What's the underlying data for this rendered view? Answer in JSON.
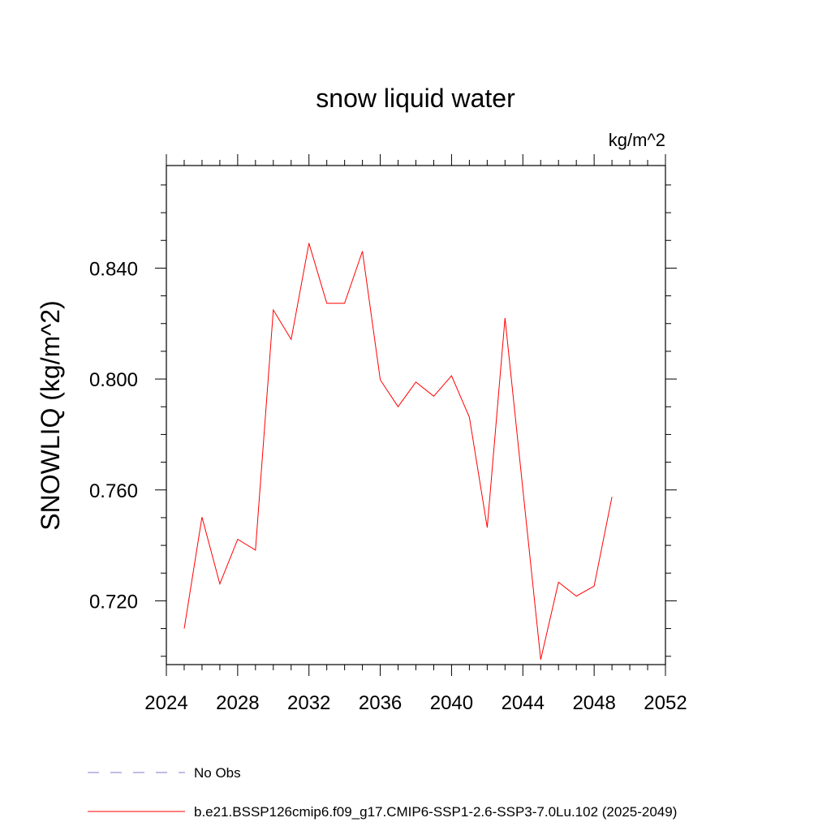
{
  "chart_data": {
    "type": "line",
    "title": "snow liquid water",
    "units_label": "kg/m^2",
    "ylabel": "SNOWLIQ  (kg/m^2)",
    "xlabel": "",
    "xlim": [
      2024,
      2052
    ],
    "ylim": [
      0.697,
      0.877
    ],
    "x_ticks": [
      2024,
      2028,
      2032,
      2036,
      2040,
      2044,
      2048,
      2052
    ],
    "x_tick_labels": [
      "2024",
      "2028",
      "2032",
      "2036",
      "2040",
      "2044",
      "2048",
      "2052"
    ],
    "y_ticks": [
      0.72,
      0.76,
      0.8,
      0.84
    ],
    "y_tick_labels": [
      "0.720",
      "0.760",
      "0.800",
      "0.840"
    ],
    "y_minor_step": 0.01,
    "x_minor_step": 1,
    "grid": false,
    "legend_position": "bottom",
    "series": [
      {
        "name": "b.e21.BSSP126cmip6.f09_g17.CMIP6-SSP1-2.6-SSP3-7.0Lu.102 (2025-2049)",
        "color": "#ff0000",
        "style": "solid",
        "x": [
          2025,
          2026,
          2027,
          2028,
          2029,
          2030,
          2031,
          2032,
          2033,
          2034,
          2035,
          2036,
          2037,
          2038,
          2039,
          2040,
          2041,
          2042,
          2043,
          2044,
          2045,
          2046,
          2047,
          2048,
          2049
        ],
        "y": [
          0.71,
          0.7502,
          0.7261,
          0.7422,
          0.7383,
          0.8249,
          0.8143,
          0.849,
          0.8273,
          0.8273,
          0.8461,
          0.7997,
          0.79,
          0.7989,
          0.7938,
          0.8012,
          0.7862,
          0.7464,
          0.822,
          0.7602,
          0.6988,
          0.7267,
          0.7217,
          0.7253,
          0.7575
        ]
      }
    ],
    "legend": [
      {
        "label": "No Obs",
        "color": "#8877cc",
        "style": "dashed"
      },
      {
        "label": "b.e21.BSSP126cmip6.f09_g17.CMIP6-SSP1-2.6-SSP3-7.0Lu.102 (2025-2049)",
        "color": "#ff0000",
        "style": "solid"
      }
    ]
  }
}
